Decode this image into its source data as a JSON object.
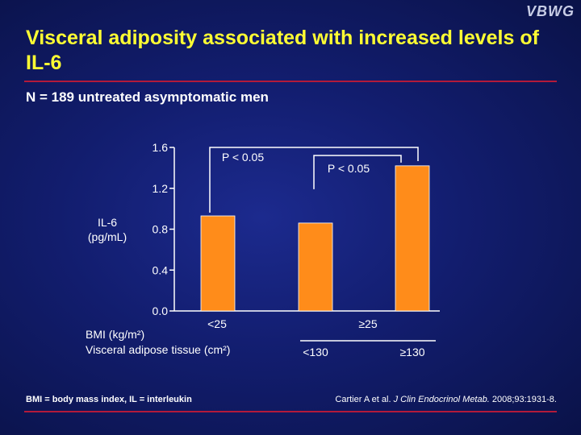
{
  "logo": "VBWG",
  "title": "Visceral adiposity associated with increased levels of IL-6",
  "subtitle": "N = 189 untreated asymptomatic men",
  "footnote": "BMI = body mass index, IL = interleukin",
  "citation": {
    "authors": "Cartier A et al.",
    "journal": "J Clin Endocrinol Metab.",
    "details": "2008;93:1931-8."
  },
  "colors": {
    "title": "#ffff33",
    "bar": "#ff8c1a",
    "rule": "#b31a3a",
    "background": "#121d6e"
  },
  "chart_data": {
    "type": "bar",
    "ylabel_line1": "IL-6",
    "ylabel_line2": "(pg/mL)",
    "ylim": [
      0,
      1.6
    ],
    "ticks": [
      "0.0",
      "0.4",
      "0.8",
      "1.2",
      "1.6"
    ],
    "values": [
      0.93,
      0.86,
      1.42
    ],
    "bmi_label": "BMI (kg/m²)",
    "vat_label": "Visceral adipose tissue (cm²)",
    "bmi_groups": [
      "<25",
      "≥25"
    ],
    "vat_groups": [
      "<130",
      "≥130"
    ],
    "significance": [
      "P < 0.05",
      "P < 0.05"
    ],
    "grid": false,
    "legend": "none"
  }
}
